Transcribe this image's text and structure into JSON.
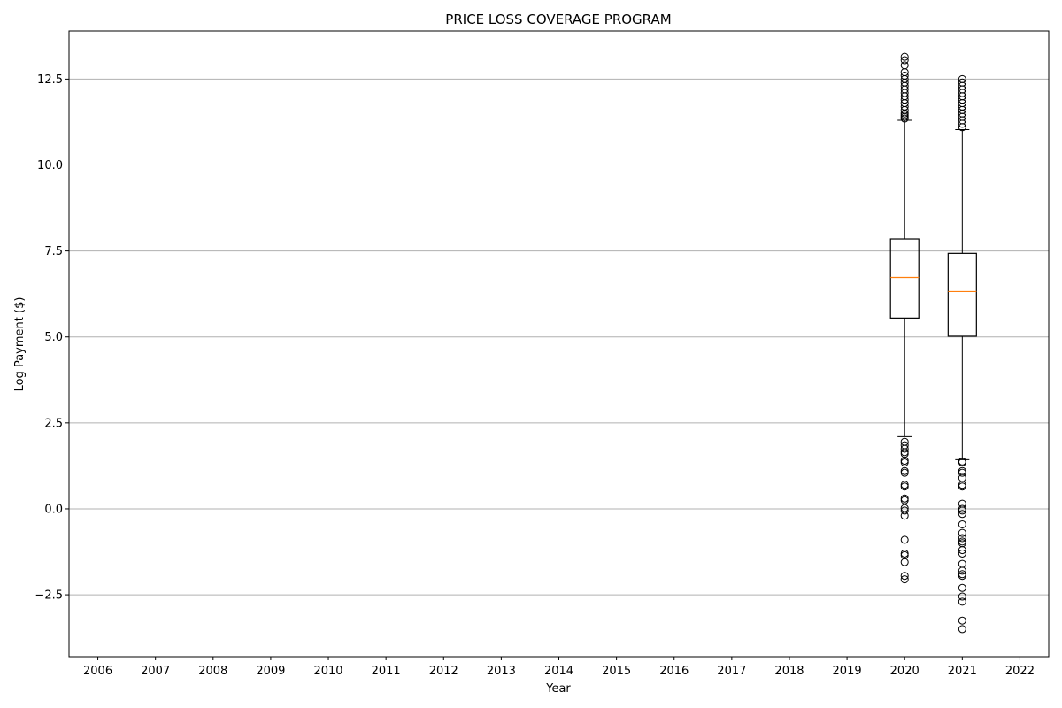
{
  "chart_data": {
    "type": "box",
    "title": "PRICE LOSS COVERAGE PROGRAM",
    "xlabel": "Year",
    "ylabel": "Log Payment ($)",
    "categories": [
      "2006",
      "2007",
      "2008",
      "2009",
      "2010",
      "2011",
      "2012",
      "2013",
      "2014",
      "2015",
      "2016",
      "2017",
      "2018",
      "2019",
      "2020",
      "2021",
      "2022"
    ],
    "y_ticks": [
      -2.5,
      0.0,
      2.5,
      5.0,
      7.5,
      10.0,
      12.5
    ],
    "y_tick_labels": [
      "−2.5",
      "0.0",
      "2.5",
      "5.0",
      "7.5",
      "10.0",
      "12.5"
    ],
    "ylim": [
      -4.3,
      13.9
    ],
    "grid": "horizontal",
    "colors": {
      "box": "#000000",
      "median": "#ff7f0e",
      "grid": "#b0b0b0"
    },
    "boxes": [
      {
        "category": "2020",
        "whisker_low": 2.1,
        "q1": 5.55,
        "median": 6.73,
        "q3": 7.85,
        "whisker_high": 11.3,
        "outliers": [
          13.15,
          13.05,
          12.9,
          12.7,
          12.6,
          12.5,
          12.4,
          12.3,
          12.2,
          12.1,
          12.0,
          11.9,
          11.8,
          11.7,
          11.6,
          11.5,
          11.45,
          11.4,
          11.35,
          1.95,
          1.85,
          1.75,
          1.65,
          1.6,
          1.4,
          1.35,
          1.1,
          1.05,
          0.7,
          0.65,
          0.3,
          0.25,
          0.02,
          -0.05,
          -0.2,
          -0.9,
          -1.3,
          -1.35,
          -1.55,
          -1.95,
          -2.05
        ]
      },
      {
        "category": "2021",
        "whisker_low": 1.43,
        "q1": 5.02,
        "median": 6.32,
        "q3": 7.43,
        "whisker_high": 11.03,
        "outliers": [
          12.5,
          12.4,
          12.3,
          12.2,
          12.1,
          12.0,
          11.9,
          11.8,
          11.7,
          11.6,
          11.5,
          11.4,
          11.3,
          11.2,
          11.1,
          1.38,
          1.35,
          1.1,
          1.05,
          0.9,
          0.7,
          0.65,
          0.15,
          0.0,
          -0.05,
          -0.15,
          -0.45,
          -0.7,
          -0.85,
          -0.95,
          -1.0,
          -1.2,
          -1.3,
          -1.6,
          -1.8,
          -1.9,
          -1.95,
          -2.3,
          -2.55,
          -2.7,
          -3.25,
          -3.5
        ]
      }
    ]
  }
}
